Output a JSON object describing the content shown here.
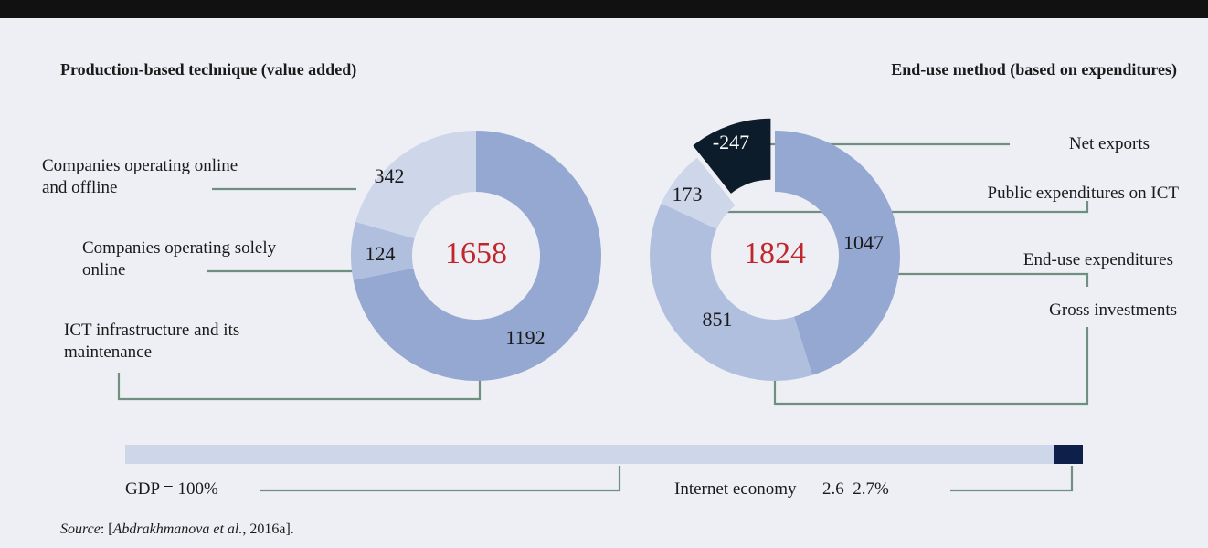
{
  "chart_data": [
    {
      "type": "pie",
      "donut": true,
      "title": "Production-based technique (value added)",
      "categories": [
        "ICT infrastructure and its maintenance",
        "Companies operating solely online",
        "Companies operating online and offline"
      ],
      "values": [
        1192,
        124,
        342
      ],
      "colors": [
        "#94a8d1",
        "#b1bfdf",
        "#ced7ea"
      ],
      "total": 1658
    },
    {
      "type": "pie",
      "donut": true,
      "title": "End-use method (based on expenditures)",
      "categories": [
        "End-use expenditures",
        "Gross investments",
        "Public expenditures on ICT",
        "Net exports"
      ],
      "values": [
        1047,
        851,
        173,
        -247
      ],
      "colors": [
        "#94a8d1",
        "#b1bfdf",
        "#ced7ea",
        "#0d1c2b"
      ],
      "total": 1824
    }
  ],
  "bar_labels": [
    "GDP = 100%",
    "Internet economy — 2.6–2.7%"
  ],
  "source": [
    "Source",
    ": [",
    "Abdrakhmanova et al.",
    ", 2016a]."
  ]
}
